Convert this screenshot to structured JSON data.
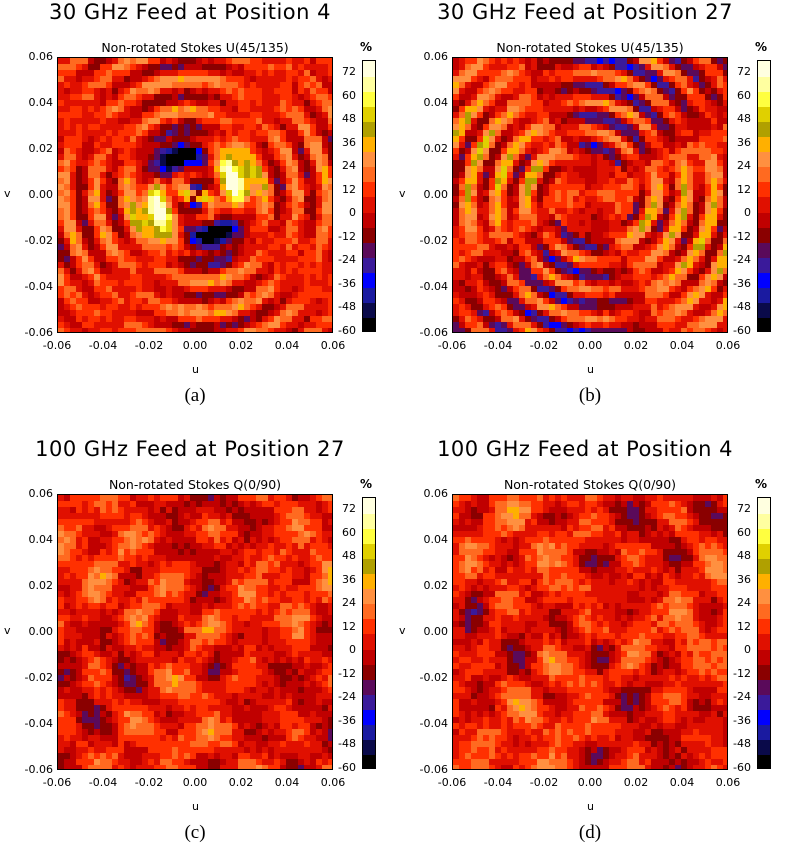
{
  "chart_data": [
    {
      "type": "heatmap",
      "title": "30 GHz Feed at Position 4",
      "subtitle": "Non-rotated Stokes U(45/135)",
      "xlabel": "u",
      "ylabel": "v",
      "xlim": [
        -0.06,
        0.06
      ],
      "ylim": [
        -0.06,
        0.06
      ],
      "x_ticks": [
        "-0.06",
        "-0.04",
        "-0.02",
        "0.00",
        "0.02",
        "0.04",
        "0.06"
      ],
      "y_ticks": [
        "0.06",
        "0.04",
        "0.02",
        "0.00",
        "-0.02",
        "-0.04",
        "-0.06"
      ],
      "colorbar_unit": "%",
      "colorbar_ticks": [
        "72",
        "60",
        "48",
        "36",
        "24",
        "12",
        "0",
        "-12",
        "-24",
        "-36",
        "-48",
        "-60"
      ],
      "caption": "(a)",
      "pattern": "ring"
    },
    {
      "type": "heatmap",
      "title": "30 GHz Feed at Position 27",
      "subtitle": "Non-rotated Stokes U(45/135)",
      "xlabel": "u",
      "ylabel": "v",
      "xlim": [
        -0.06,
        0.06
      ],
      "ylim": [
        -0.06,
        0.06
      ],
      "x_ticks": [
        "-0.06",
        "-0.04",
        "-0.02",
        "0.00",
        "0.02",
        "0.04",
        "0.06"
      ],
      "y_ticks": [
        "0.06",
        "0.04",
        "0.02",
        "0.00",
        "-0.02",
        "-0.04",
        "-0.06"
      ],
      "colorbar_unit": "%",
      "colorbar_ticks": [
        "72",
        "60",
        "48",
        "36",
        "24",
        "12",
        "0",
        "-12",
        "-24",
        "-36",
        "-48",
        "-60"
      ],
      "caption": "(b)",
      "pattern": "spiral"
    },
    {
      "type": "heatmap",
      "title": "100 GHz Feed at Position 27",
      "subtitle": "Non-rotated Stokes Q(0/90)",
      "xlabel": "u",
      "ylabel": "v",
      "xlim": [
        -0.06,
        0.06
      ],
      "ylim": [
        -0.06,
        0.06
      ],
      "x_ticks": [
        "-0.06",
        "-0.04",
        "-0.02",
        "0.00",
        "0.02",
        "0.04",
        "0.06"
      ],
      "y_ticks": [
        "0.06",
        "0.04",
        "0.02",
        "0.00",
        "-0.02",
        "-0.04",
        "-0.06"
      ],
      "colorbar_unit": "%",
      "colorbar_ticks": [
        "72",
        "60",
        "48",
        "36",
        "24",
        "12",
        "0",
        "-12",
        "-24",
        "-36",
        "-48",
        "-60"
      ],
      "caption": "(c)",
      "pattern": "speckle"
    },
    {
      "type": "heatmap",
      "title": "100 GHz Feed at Position 4",
      "subtitle": "Non-rotated Stokes Q(0/90)",
      "xlabel": "u",
      "ylabel": "v",
      "xlim": [
        -0.06,
        0.06
      ],
      "ylim": [
        -0.06,
        0.06
      ],
      "x_ticks": [
        "-0.06",
        "-0.04",
        "-0.02",
        "0.00",
        "0.02",
        "0.04",
        "0.06"
      ],
      "y_ticks": [
        "0.06",
        "0.04",
        "0.02",
        "0.00",
        "-0.02",
        "-0.04",
        "-0.06"
      ],
      "colorbar_unit": "%",
      "colorbar_ticks": [
        "72",
        "60",
        "48",
        "36",
        "24",
        "12",
        "0",
        "-12",
        "-24",
        "-36",
        "-48",
        "-60"
      ],
      "caption": "(d)",
      "pattern": "speckle2"
    }
  ],
  "colormap": [
    "#000000",
    "#0a0a4a",
    "#1a1aa0",
    "#0000ff",
    "#3a1a9a",
    "#5a0a5a",
    "#8a0000",
    "#c00000",
    "#e01000",
    "#ff3000",
    "#ff6a20",
    "#ff9040",
    "#ffb000",
    "#b0a000",
    "#e0d000",
    "#ffff40",
    "#ffffa0",
    "#ffffe0"
  ]
}
